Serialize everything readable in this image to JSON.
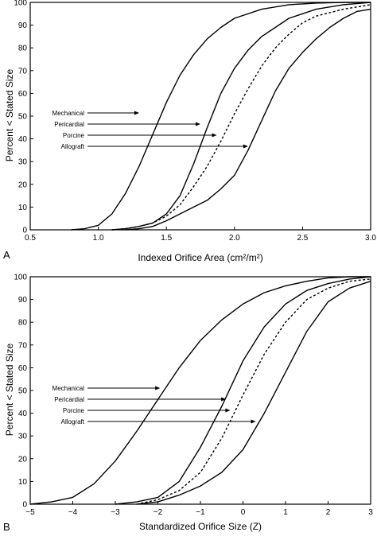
{
  "panel_letters": [
    "A",
    "B"
  ],
  "chart_data": [
    {
      "type": "line",
      "panel": "A",
      "xlabel": "Indexed Orifice Area (cm²/m²)",
      "ylabel": "Percent < Stated Size",
      "xlim": [
        0.5,
        3.0
      ],
      "ylim": [
        0,
        100
      ],
      "xticks": [
        "0.5",
        "1.0",
        "1.5",
        "2.0",
        "2.5",
        "3.0"
      ],
      "yticks": [
        "0",
        "10",
        "20",
        "30",
        "40",
        "50",
        "60",
        "70",
        "80",
        "90",
        "100"
      ],
      "grid": false,
      "series": [
        {
          "name": "Mechanical",
          "style": "solid",
          "x": [
            0.8,
            0.9,
            1.0,
            1.1,
            1.2,
            1.3,
            1.4,
            1.5,
            1.6,
            1.7,
            1.8,
            1.9,
            2.0,
            2.2,
            2.4,
            2.6,
            2.8,
            3.0
          ],
          "y": [
            0,
            0.5,
            2,
            7,
            16,
            28,
            42,
            56,
            68,
            77,
            84,
            89,
            93,
            97,
            99,
            99.7,
            100,
            100
          ]
        },
        {
          "name": "Pericardial",
          "style": "solid",
          "x": [
            1.1,
            1.2,
            1.3,
            1.4,
            1.5,
            1.6,
            1.7,
            1.8,
            1.9,
            2.0,
            2.1,
            2.2,
            2.3,
            2.4,
            2.5,
            2.6,
            2.8,
            3.0
          ],
          "y": [
            0,
            0.5,
            1.5,
            3,
            7,
            15,
            29,
            45,
            60,
            71,
            79,
            85,
            89,
            93,
            95,
            97,
            99,
            100
          ]
        },
        {
          "name": "Porcine",
          "style": "dashed",
          "x": [
            1.1,
            1.2,
            1.3,
            1.4,
            1.5,
            1.6,
            1.7,
            1.8,
            1.9,
            2.0,
            2.1,
            2.2,
            2.3,
            2.4,
            2.5,
            2.6,
            2.8,
            3.0
          ],
          "y": [
            0,
            0.5,
            1.5,
            3,
            6,
            11,
            19,
            28,
            39,
            51,
            62,
            72,
            80,
            86,
            91,
            94,
            97,
            99
          ]
        },
        {
          "name": "Allograft",
          "style": "solid",
          "x": [
            1.2,
            1.3,
            1.4,
            1.5,
            1.6,
            1.7,
            1.8,
            1.9,
            2.0,
            2.1,
            2.2,
            2.3,
            2.4,
            2.5,
            2.6,
            2.7,
            2.8,
            2.9,
            3.0
          ],
          "y": [
            0,
            0.5,
            1.5,
            4,
            7,
            10,
            13,
            18,
            24,
            35,
            48,
            61,
            71,
            78,
            84,
            89,
            93,
            96,
            97
          ]
        }
      ],
      "annotations": [
        {
          "text": "Mechanical",
          "target_x": 1.3,
          "target_y": 55
        },
        {
          "text": "Pericardial",
          "target_x": 1.75,
          "target_y": 49
        },
        {
          "text": "Porcine",
          "target_x": 1.87,
          "target_y": 44
        },
        {
          "text": "Allograft",
          "target_x": 2.1,
          "target_y": 38
        }
      ]
    },
    {
      "type": "line",
      "panel": "B",
      "xlabel": "Standardized Orifice Size (Z)",
      "ylabel": "Percent < Stated Size",
      "xlim": [
        -5,
        3
      ],
      "ylim": [
        0,
        100
      ],
      "xticks": [
        "−5",
        "−4",
        "−3",
        "−2",
        "−1",
        "0",
        "1",
        "2",
        "3"
      ],
      "yticks": [
        "0",
        "10",
        "20",
        "30",
        "40",
        "50",
        "60",
        "70",
        "80",
        "90",
        "100"
      ],
      "grid": false,
      "series": [
        {
          "name": "Mechanical",
          "style": "solid",
          "x": [
            -5,
            -4.5,
            -4,
            -3.5,
            -3,
            -2.5,
            -2,
            -1.5,
            -1,
            -0.5,
            0,
            0.5,
            1,
            1.5,
            2,
            2.5,
            3
          ],
          "y": [
            0,
            1,
            3,
            9,
            19,
            32,
            46,
            60,
            72,
            81,
            88,
            93,
            96,
            98,
            99.5,
            100,
            100
          ]
        },
        {
          "name": "Pericardial",
          "style": "solid",
          "x": [
            -3,
            -2.5,
            -2,
            -1.5,
            -1,
            -0.5,
            0,
            0.5,
            1,
            1.5,
            2,
            2.5,
            3
          ],
          "y": [
            0,
            1,
            3,
            10,
            25,
            43,
            63,
            78,
            88,
            94,
            97,
            99,
            100
          ]
        },
        {
          "name": "Porcine",
          "style": "dashed",
          "x": [
            -2.5,
            -2,
            -1.5,
            -1,
            -0.5,
            0,
            0.5,
            1,
            1.5,
            2,
            2.5,
            3
          ],
          "y": [
            0,
            2,
            6,
            14,
            29,
            48,
            66,
            80,
            90,
            95,
            98,
            99
          ]
        },
        {
          "name": "Allograft",
          "style": "solid",
          "x": [
            -2.5,
            -2,
            -1.5,
            -1,
            -0.5,
            0,
            0.5,
            1,
            1.5,
            2,
            2.5,
            3
          ],
          "y": [
            0,
            1,
            4,
            8,
            14,
            24,
            40,
            58,
            76,
            89,
            95,
            98
          ]
        }
      ],
      "annotations": [
        {
          "text": "Mechanical",
          "target_x": -1.95,
          "target_y": 55
        },
        {
          "text": "Pericardial",
          "target_x": -0.4,
          "target_y": 49
        },
        {
          "text": "Porcine",
          "target_x": -0.3,
          "target_y": 44
        },
        {
          "text": "Allograft",
          "target_x": 0.3,
          "target_y": 38
        }
      ]
    }
  ]
}
